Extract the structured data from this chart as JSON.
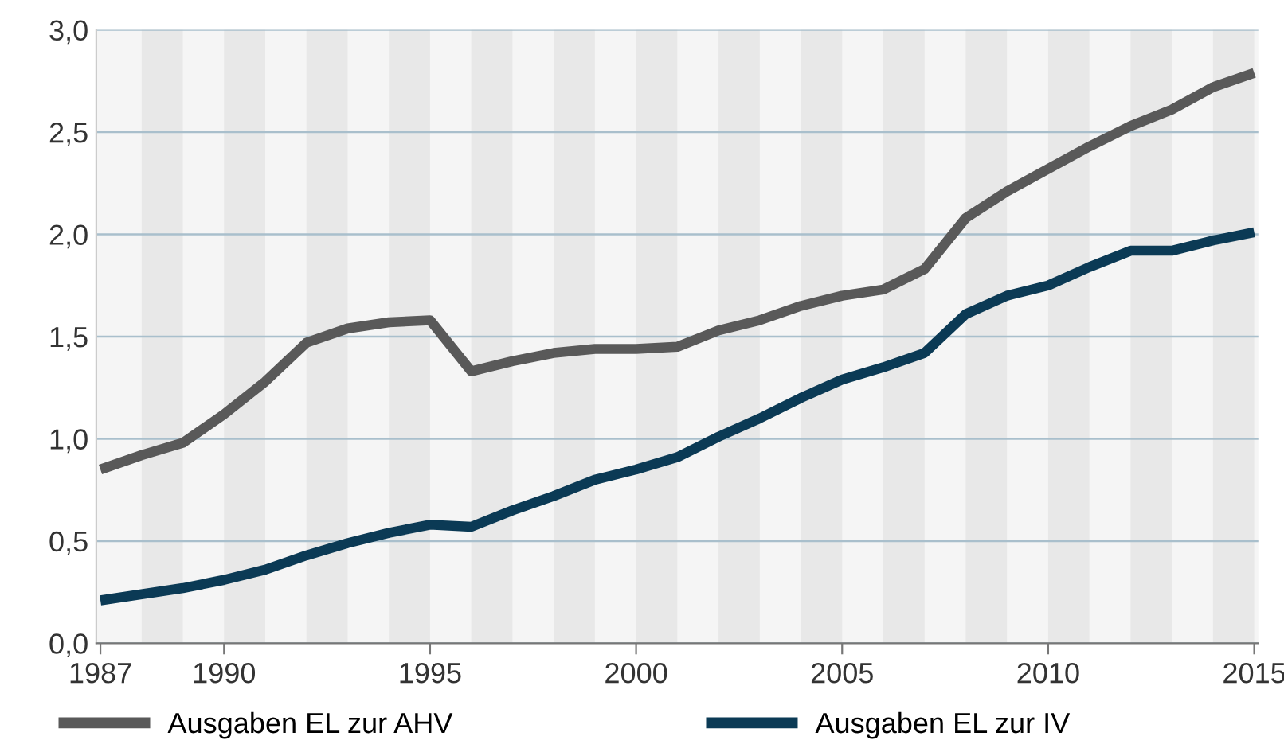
{
  "chart_data": {
    "type": "line",
    "x": [
      1987,
      1988,
      1989,
      1990,
      1991,
      1992,
      1993,
      1994,
      1995,
      1996,
      1997,
      1998,
      1999,
      2000,
      2001,
      2002,
      2003,
      2004,
      2005,
      2006,
      2007,
      2008,
      2009,
      2010,
      2011,
      2012,
      2013,
      2014,
      2015
    ],
    "series": [
      {
        "name": "Ausgaben EL zur AHV",
        "color": "#595959",
        "values": [
          0.85,
          0.92,
          0.98,
          1.12,
          1.28,
          1.47,
          1.54,
          1.57,
          1.58,
          1.33,
          1.38,
          1.42,
          1.44,
          1.44,
          1.45,
          1.53,
          1.58,
          1.65,
          1.7,
          1.73,
          1.83,
          2.08,
          2.21,
          2.32,
          2.43,
          2.53,
          2.61,
          2.72,
          2.79
        ]
      },
      {
        "name": "Ausgaben EL zur IV",
        "color": "#0b3a55",
        "values": [
          0.21,
          0.24,
          0.27,
          0.31,
          0.36,
          0.43,
          0.49,
          0.54,
          0.58,
          0.57,
          0.65,
          0.72,
          0.8,
          0.85,
          0.91,
          1.01,
          1.1,
          1.2,
          1.29,
          1.35,
          1.42,
          1.61,
          1.7,
          1.75,
          1.84,
          1.92,
          1.92,
          1.97,
          2.01
        ]
      }
    ],
    "xlim": [
      1986.9,
      2015.1
    ],
    "xticks": [
      1987,
      1990,
      1995,
      2000,
      2005,
      2010,
      2015
    ],
    "ylim": [
      0,
      3.0
    ],
    "yticks": [
      {
        "value": 0,
        "label": "0,0"
      },
      {
        "value": 0.5,
        "label": "0,5"
      },
      {
        "value": 1.0,
        "label": "1,0"
      },
      {
        "value": 1.5,
        "label": "1,5"
      },
      {
        "value": 2.0,
        "label": "2,0"
      },
      {
        "value": 2.5,
        "label": "2,5"
      },
      {
        "value": 3.0,
        "label": "3,0"
      }
    ],
    "bands": [
      {
        "axis": "x",
        "from": 1988,
        "to": 1989,
        "color": "#e8e8e8"
      },
      {
        "axis": "x",
        "from": 1990,
        "to": 1991,
        "color": "#e8e8e8"
      },
      {
        "axis": "x",
        "from": 1992,
        "to": 1993,
        "color": "#e8e8e8"
      },
      {
        "axis": "x",
        "from": 1994,
        "to": 1995,
        "color": "#e8e8e8"
      },
      {
        "axis": "x",
        "from": 1996,
        "to": 1997,
        "color": "#e8e8e8"
      },
      {
        "axis": "x",
        "from": 1998,
        "to": 1999,
        "color": "#e8e8e8"
      },
      {
        "axis": "x",
        "from": 2000,
        "to": 2001,
        "color": "#e8e8e8"
      },
      {
        "axis": "x",
        "from": 2002,
        "to": 2003,
        "color": "#e8e8e8"
      },
      {
        "axis": "x",
        "from": 2004,
        "to": 2005,
        "color": "#e8e8e8"
      },
      {
        "axis": "x",
        "from": 2006,
        "to": 2007,
        "color": "#e8e8e8"
      },
      {
        "axis": "x",
        "from": 2008,
        "to": 2009,
        "color": "#e8e8e8"
      },
      {
        "axis": "x",
        "from": 2010,
        "to": 2011,
        "color": "#e8e8e8"
      },
      {
        "axis": "x",
        "from": 2012,
        "to": 2013,
        "color": "#e8e8e8"
      },
      {
        "axis": "x",
        "from": 2014,
        "to": 2015,
        "color": "#e8e8e8"
      }
    ],
    "grid": "y",
    "legend": "bottom",
    "line_style": "solid"
  }
}
